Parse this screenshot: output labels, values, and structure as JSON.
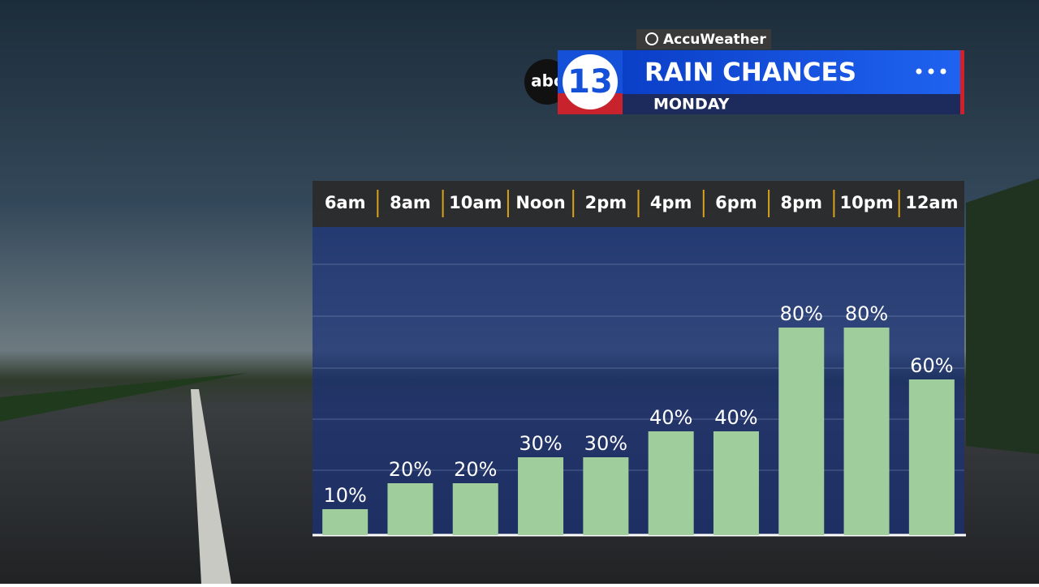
{
  "branding": {
    "provider": "AccuWeather",
    "network": "abc",
    "channel": "13"
  },
  "chart_data": {
    "type": "bar",
    "title": "RAIN CHANCES",
    "subtitle": "MONDAY",
    "categories": [
      "6am",
      "8am",
      "10am",
      "Noon",
      "2pm",
      "4pm",
      "6pm",
      "8pm",
      "10pm",
      "12am"
    ],
    "values": [
      10,
      20,
      20,
      30,
      30,
      40,
      40,
      80,
      80,
      60
    ],
    "value_labels": [
      "10%",
      "20%",
      "20%",
      "30%",
      "30%",
      "40%",
      "40%",
      "80%",
      "80%",
      "60%"
    ],
    "color": "#9fcd9c",
    "ylim": [
      0,
      100
    ]
  }
}
